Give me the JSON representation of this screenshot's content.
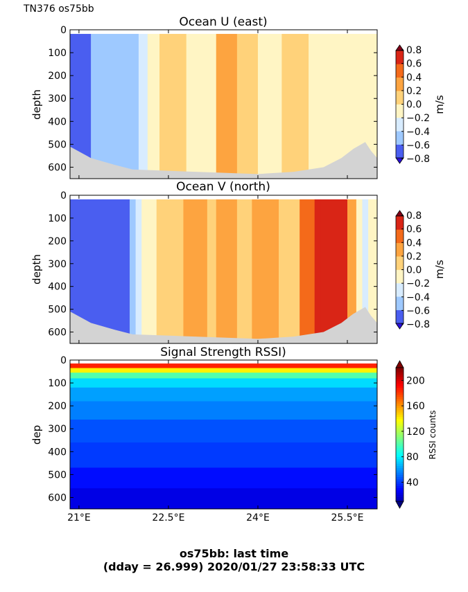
{
  "figure": {
    "cruise_label": "TN376 os75bb",
    "footer_line1": "os75bb: last time",
    "footer_line2": "(dday = 26.999) 2020/01/27 23:58:33 UTC",
    "bathymetry_color": "#d3d3d3"
  },
  "chart_data": [
    {
      "type": "heatmap",
      "title": "Ocean U (east)",
      "ylabel": "depth",
      "ylim": [
        650,
        0
      ],
      "yticks": [
        0,
        100,
        200,
        300,
        400,
        500,
        600
      ],
      "xlim": [
        20.85,
        26.0
      ],
      "xticks": [
        21.0,
        22.5,
        24.0,
        25.5
      ],
      "xticklabels": [
        "21°E",
        "22.5°E",
        "24°E",
        "25.5°E"
      ],
      "colorbar": {
        "label": "m/s",
        "ticks": [
          "0.8",
          "0.6",
          "0.4",
          "0.2",
          "0.0",
          "−0.2",
          "−0.4",
          "−0.6",
          "−0.8"
        ],
        "colors": [
          "#2a0fd8",
          "#4a5ef0",
          "#9ec9ff",
          "#d8ecff",
          "#fff5c4",
          "#ffd27a",
          "#fda440",
          "#f46a1a",
          "#d92516",
          "#800018"
        ]
      },
      "x_edges": [
        20.85,
        21.2,
        21.7,
        22.0,
        22.15,
        22.35,
        22.8,
        23.3,
        23.65,
        24.0,
        24.4,
        24.85,
        25.3,
        26.0
      ],
      "column_values": [
        -0.7,
        -0.6,
        -0.45,
        -0.3,
        -0.15,
        0.05,
        -0.1,
        0.2,
        0.05,
        -0.1,
        0.05,
        -0.1,
        -0.05
      ],
      "bottom_depth": [
        [
          20.85,
          510
        ],
        [
          21.2,
          560
        ],
        [
          21.6,
          590
        ],
        [
          21.9,
          610
        ],
        [
          24.0,
          630
        ],
        [
          24.6,
          620
        ],
        [
          25.1,
          600
        ],
        [
          25.4,
          560
        ],
        [
          25.6,
          520
        ],
        [
          25.8,
          490
        ],
        [
          25.9,
          530
        ],
        [
          26.0,
          560
        ]
      ]
    },
    {
      "type": "heatmap",
      "title": "Ocean V (north)",
      "ylabel": "depth",
      "ylim": [
        650,
        0
      ],
      "yticks": [
        0,
        100,
        200,
        300,
        400,
        500,
        600
      ],
      "xlim": [
        20.85,
        26.0
      ],
      "xticks": [
        21.0,
        22.5,
        24.0,
        25.5
      ],
      "xticklabels": [
        "21°E",
        "22.5°E",
        "24°E",
        "25.5°E"
      ],
      "colorbar": {
        "label": "m/s",
        "ticks": [
          "0.8",
          "0.6",
          "0.4",
          "0.2",
          "0.0",
          "−0.2",
          "−0.4",
          "−0.6",
          "−0.8"
        ],
        "colors": [
          "#2a0fd8",
          "#4a5ef0",
          "#9ec9ff",
          "#d8ecff",
          "#fff5c4",
          "#ffd27a",
          "#fda440",
          "#f46a1a",
          "#d92516",
          "#800018"
        ]
      },
      "x_edges": [
        20.85,
        21.15,
        21.4,
        21.85,
        21.95,
        22.05,
        22.3,
        22.75,
        23.15,
        23.3,
        23.65,
        23.9,
        24.35,
        24.7,
        24.95,
        25.05,
        25.5,
        25.65,
        25.75,
        25.85,
        26.0
      ],
      "column_values": [
        -0.8,
        -0.7,
        -0.65,
        -0.45,
        -0.3,
        -0.1,
        0.05,
        0.25,
        0.05,
        0.25,
        0.05,
        0.25,
        0.05,
        0.45,
        0.65,
        0.75,
        0.2,
        -0.1,
        -0.35,
        -0.1
      ],
      "bottom_depth": [
        [
          20.85,
          510
        ],
        [
          21.2,
          560
        ],
        [
          21.6,
          590
        ],
        [
          21.9,
          610
        ],
        [
          24.0,
          630
        ],
        [
          24.6,
          620
        ],
        [
          25.1,
          600
        ],
        [
          25.4,
          560
        ],
        [
          25.6,
          520
        ],
        [
          25.8,
          490
        ],
        [
          25.9,
          530
        ],
        [
          26.0,
          560
        ]
      ]
    },
    {
      "type": "heatmap",
      "title": "Signal Strength RSSI)",
      "ylabel": "dep",
      "ylim": [
        650,
        0
      ],
      "yticks": [
        0,
        100,
        200,
        300,
        400,
        500,
        600
      ],
      "xlim": [
        20.85,
        26.0
      ],
      "xticks": [
        21.0,
        22.5,
        24.0,
        25.5
      ],
      "xticklabels": [
        "21°E",
        "22.5°E",
        "24°E",
        "25.5°E"
      ],
      "colorbar": {
        "label": "RSSI counts",
        "ticks": [
          "200",
          "160",
          "120",
          "80",
          "40"
        ],
        "colors": [
          "#00007f",
          "#0000ff",
          "#007fff",
          "#00ffff",
          "#7fff7f",
          "#ffff00",
          "#ff7f00",
          "#ff0000",
          "#7f0000"
        ]
      },
      "rows": [
        {
          "depth": [
            15,
            35
          ],
          "value": 185
        },
        {
          "depth": [
            35,
            55
          ],
          "value": 140
        },
        {
          "depth": [
            55,
            80
          ],
          "value": 100
        },
        {
          "depth": [
            80,
            120
          ],
          "value": 75
        },
        {
          "depth": [
            120,
            180
          ],
          "value": 62
        },
        {
          "depth": [
            180,
            260
          ],
          "value": 55
        },
        {
          "depth": [
            260,
            360
          ],
          "value": 45
        },
        {
          "depth": [
            360,
            470
          ],
          "value": 40
        },
        {
          "depth": [
            470,
            560
          ],
          "value": 30
        },
        {
          "depth": [
            560,
            650
          ],
          "value": 22
        }
      ]
    }
  ]
}
